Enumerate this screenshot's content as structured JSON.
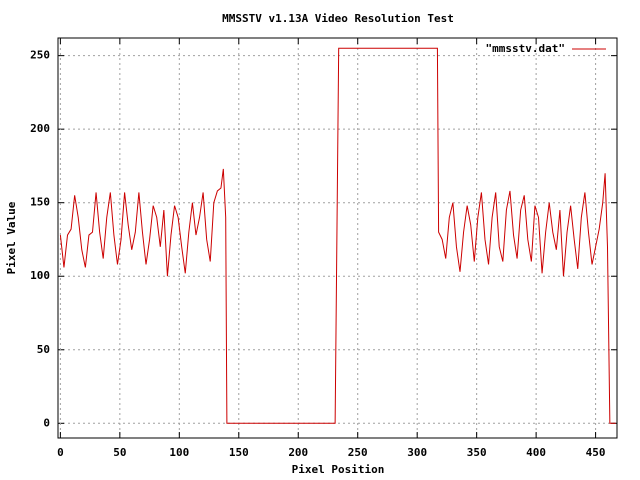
{
  "chart_data": {
    "type": "line",
    "title": "MMSSTV v1.13A Video Resolution Test",
    "x_label": "Pixel Position",
    "y_label": "Pixel Value",
    "xlim": [
      -2,
      468
    ],
    "ylim": [
      -10,
      262
    ],
    "xticks": [
      0,
      50,
      100,
      150,
      200,
      250,
      300,
      350,
      400,
      450
    ],
    "yticks": [
      0,
      50,
      100,
      150,
      200,
      250
    ],
    "grid": true,
    "legend": "top-right",
    "x": [
      0,
      3,
      6,
      9,
      12,
      15,
      18,
      21,
      24,
      27,
      30,
      33,
      36,
      39,
      42,
      45,
      48,
      51,
      54,
      57,
      60,
      63,
      66,
      69,
      72,
      75,
      78,
      81,
      84,
      87,
      90,
      93,
      96,
      99,
      102,
      105,
      108,
      111,
      114,
      117,
      120,
      123,
      126,
      129,
      132,
      135,
      137,
      139,
      140,
      231,
      234,
      317,
      318,
      321,
      324,
      327,
      330,
      333,
      336,
      339,
      342,
      345,
      348,
      351,
      354,
      357,
      360,
      363,
      366,
      369,
      372,
      375,
      378,
      381,
      384,
      387,
      390,
      393,
      396,
      399,
      402,
      405,
      408,
      411,
      414,
      417,
      420,
      423,
      426,
      429,
      432,
      435,
      438,
      441,
      444,
      447,
      450,
      453,
      456,
      458,
      460,
      462,
      467
    ],
    "series": [
      {
        "name": "\"mmsstv.dat\"",
        "color": "#cc0000",
        "values": [
          128,
          106,
          128,
          132,
          155,
          140,
          118,
          106,
          128,
          130,
          157,
          130,
          112,
          140,
          157,
          128,
          108,
          125,
          157,
          135,
          118,
          130,
          157,
          130,
          108,
          125,
          148,
          140,
          120,
          145,
          100,
          128,
          148,
          140,
          120,
          102,
          130,
          150,
          128,
          140,
          157,
          125,
          110,
          150,
          158,
          160,
          173,
          140,
          0,
          0,
          255,
          255,
          130,
          125,
          112,
          140,
          150,
          120,
          103,
          130,
          148,
          135,
          110,
          140,
          157,
          125,
          108,
          140,
          157,
          120,
          110,
          145,
          158,
          128,
          112,
          145,
          155,
          125,
          110,
          148,
          140,
          102,
          130,
          150,
          130,
          118,
          145,
          100,
          130,
          148,
          125,
          105,
          140,
          157,
          130,
          108,
          120,
          132,
          150,
          170,
          120,
          0,
          0
        ]
      }
    ]
  }
}
